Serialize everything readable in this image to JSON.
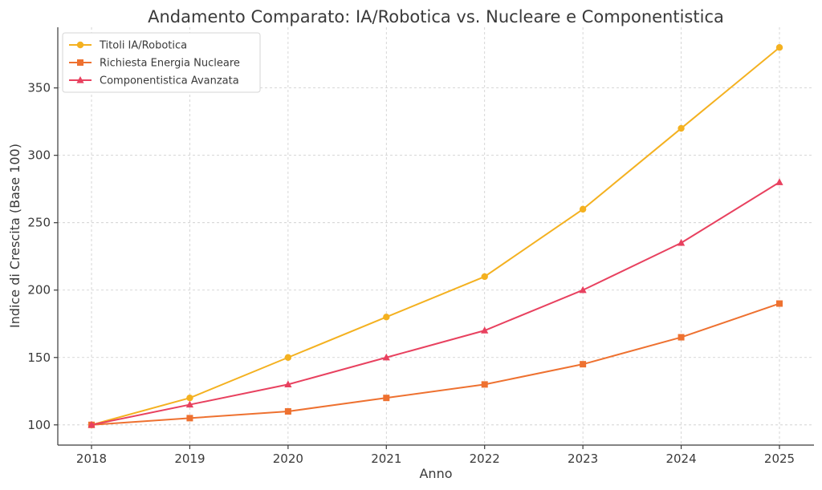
{
  "chart_data": {
    "type": "line",
    "title": "Andamento Comparato: IA/Robotica vs. Nucleare e Componentistica",
    "xlabel": "Anno",
    "ylabel": "Indice di Crescita (Base 100)",
    "x": [
      "2018",
      "2019",
      "2020",
      "2021",
      "2022",
      "2023",
      "2024",
      "2025"
    ],
    "ylim": [
      85,
      395
    ],
    "yticks": [
      100,
      150,
      200,
      250,
      300,
      350
    ],
    "grid": true,
    "legend_position": "top-left",
    "series": [
      {
        "name": "Titoli IA/Robotica",
        "color": "#f4b120",
        "marker": "circle",
        "values": [
          100,
          120,
          150,
          180,
          210,
          260,
          320,
          380
        ]
      },
      {
        "name": "Richiesta Energia Nucleare",
        "color": "#ee7130",
        "marker": "square",
        "values": [
          100,
          105,
          110,
          120,
          130,
          145,
          165,
          190
        ]
      },
      {
        "name": "Componentistica Avanzata",
        "color": "#e8415f",
        "marker": "triangle",
        "values": [
          100,
          115,
          130,
          150,
          170,
          200,
          235,
          280
        ]
      }
    ]
  }
}
